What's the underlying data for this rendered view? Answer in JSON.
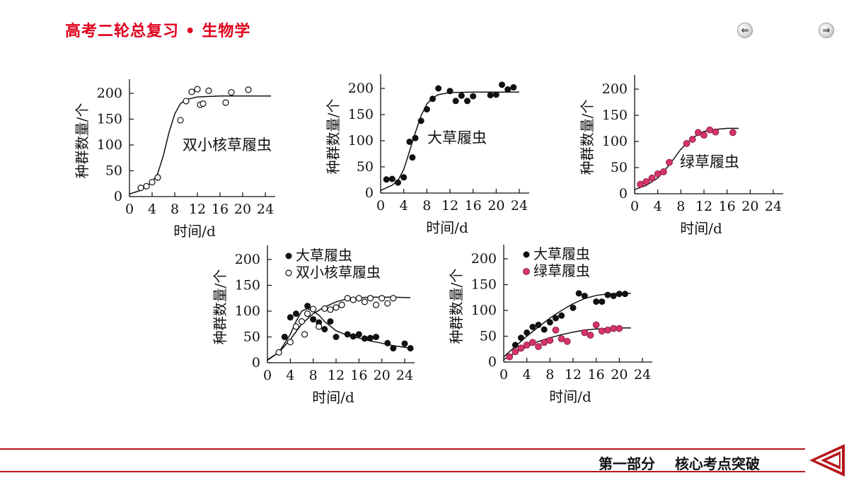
{
  "header": {
    "title": "高考二轮总复习 • 生物学"
  },
  "nav": {
    "prev_icon": "arrow-left-icon",
    "next_icon": "arrow-right-icon",
    "prev_glyph": "⇐",
    "next_glyph": "⇒"
  },
  "footer": {
    "section": "第一部分",
    "topic": "核心考点突破"
  },
  "colors": {
    "header_red": "#e0001b",
    "footer_red": "#b5171c",
    "pink_marker": "#d6336c"
  },
  "chart_data": [
    {
      "type": "scatter",
      "ylabel": "种群数量/个",
      "xlabel": "时间/d",
      "xlim": [
        0,
        24
      ],
      "ylim": [
        0,
        200
      ],
      "xticks": [
        0,
        4,
        8,
        12,
        16,
        20,
        24
      ],
      "yticks": [
        0,
        50,
        100,
        150,
        200
      ],
      "annotation": "双小核草履虫",
      "series": [
        {
          "marker": "open",
          "points": [
            [
              2,
              17
            ],
            [
              3,
              20
            ],
            [
              4,
              28
            ],
            [
              5,
              37
            ],
            [
              9,
              148
            ],
            [
              10,
              185
            ],
            [
              11,
              203
            ],
            [
              12,
              208
            ],
            [
              12.5,
              178
            ],
            [
              13,
              180
            ],
            [
              14,
              205
            ],
            [
              17,
              182
            ],
            [
              18,
              202
            ],
            [
              21,
              207
            ]
          ],
          "curve": [
            [
              0,
              5
            ],
            [
              2,
              12
            ],
            [
              4,
              28
            ],
            [
              5,
              45
            ],
            [
              6,
              80
            ],
            [
              7,
              125
            ],
            [
              8,
              160
            ],
            [
              9,
              180
            ],
            [
              10,
              188
            ],
            [
              12,
              193
            ],
            [
              16,
              195
            ],
            [
              20,
              195
            ],
            [
              25,
              195
            ]
          ]
        }
      ]
    },
    {
      "type": "scatter",
      "ylabel": "种群数量/个",
      "xlabel": "时间/d",
      "xlim": [
        0,
        24
      ],
      "ylim": [
        0,
        200
      ],
      "xticks": [
        0,
        4,
        8,
        12,
        16,
        20,
        24
      ],
      "yticks": [
        0,
        50,
        100,
        150,
        200
      ],
      "annotation": "大草履虫",
      "series": [
        {
          "marker": "filled",
          "points": [
            [
              1,
              26
            ],
            [
              2,
              27
            ],
            [
              3,
              20
            ],
            [
              4,
              30
            ],
            [
              5,
              98
            ],
            [
              5.5,
              68
            ],
            [
              6,
              105
            ],
            [
              7,
              138
            ],
            [
              8,
              160
            ],
            [
              9,
              180
            ],
            [
              10,
              200
            ],
            [
              12,
              195
            ],
            [
              13,
              176
            ],
            [
              14,
              186
            ],
            [
              15,
              176
            ],
            [
              16,
              185
            ],
            [
              19,
              187
            ],
            [
              20,
              188
            ],
            [
              21,
              207
            ],
            [
              22,
              198
            ],
            [
              23,
              202
            ]
          ],
          "curve": [
            [
              0,
              5
            ],
            [
              2,
              15
            ],
            [
              3,
              24
            ],
            [
              4,
              45
            ],
            [
              5,
              80
            ],
            [
              6,
              115
            ],
            [
              7,
              148
            ],
            [
              8,
              170
            ],
            [
              9,
              182
            ],
            [
              10,
              188
            ],
            [
              12,
              192
            ],
            [
              16,
              193
            ],
            [
              20,
              193
            ],
            [
              24,
              193
            ]
          ]
        }
      ]
    },
    {
      "type": "scatter",
      "ylabel": "种群数量/个",
      "xlabel": "时间/d",
      "xlim": [
        0,
        24
      ],
      "ylim": [
        0,
        200
      ],
      "xticks": [
        0,
        4,
        8,
        12,
        16,
        20,
        24
      ],
      "yticks": [
        0,
        50,
        100,
        150,
        200
      ],
      "annotation": "绿草履虫",
      "series": [
        {
          "marker": "pink",
          "points": [
            [
              1,
              18
            ],
            [
              2,
              23
            ],
            [
              3,
              30
            ],
            [
              4,
              38
            ],
            [
              5,
              42
            ],
            [
              6,
              60
            ],
            [
              9,
              96
            ],
            [
              10,
              104
            ],
            [
              11,
              117
            ],
            [
              12,
              112
            ],
            [
              13,
              122
            ],
            [
              14,
              118
            ],
            [
              17,
              117
            ]
          ],
          "curve": [
            [
              0,
              8
            ],
            [
              2,
              16
            ],
            [
              4,
              30
            ],
            [
              6,
              55
            ],
            [
              8,
              85
            ],
            [
              10,
              107
            ],
            [
              12,
              119
            ],
            [
              14,
              123
            ],
            [
              16,
              125
            ],
            [
              18,
              125
            ]
          ]
        }
      ]
    },
    {
      "type": "scatter",
      "ylabel": "种群数量/个",
      "xlabel": "时间/d",
      "xlim": [
        0,
        24
      ],
      "ylim": [
        0,
        200
      ],
      "xticks": [
        0,
        4,
        8,
        12,
        16,
        20,
        24
      ],
      "yticks": [
        0,
        50,
        100,
        150,
        200
      ],
      "legend": [
        "大草履虫",
        "双小核草履虫"
      ],
      "series": [
        {
          "name": "大草履虫",
          "marker": "filled",
          "points": [
            [
              3,
              50
            ],
            [
              4,
              88
            ],
            [
              5,
              95
            ],
            [
              7,
              110
            ],
            [
              8,
              84
            ],
            [
              9,
              78
            ],
            [
              10,
              65
            ],
            [
              11,
              80
            ],
            [
              12,
              50
            ],
            [
              14,
              55
            ],
            [
              15,
              51
            ],
            [
              16,
              55
            ],
            [
              17,
              47
            ],
            [
              18,
              48
            ],
            [
              19,
              50
            ],
            [
              21,
              38
            ],
            [
              22,
              28
            ],
            [
              24,
              37
            ],
            [
              25,
              28
            ]
          ],
          "curve": [
            [
              0,
              6
            ],
            [
              2,
              20
            ],
            [
              4,
              55
            ],
            [
              5,
              80
            ],
            [
              6,
              100
            ],
            [
              7,
              105
            ],
            [
              8,
              100
            ],
            [
              9,
              92
            ],
            [
              10,
              80
            ],
            [
              12,
              62
            ],
            [
              14,
              53
            ],
            [
              16,
              48
            ],
            [
              18,
              42
            ],
            [
              20,
              38
            ],
            [
              22,
              33
            ],
            [
              24,
              30
            ],
            [
              25,
              28
            ]
          ]
        },
        {
          "name": "双小核草履虫",
          "marker": "open",
          "points": [
            [
              2,
              20
            ],
            [
              4,
              40
            ],
            [
              5,
              70
            ],
            [
              6,
              80
            ],
            [
              6.5,
              55
            ],
            [
              7,
              95
            ],
            [
              8,
              104
            ],
            [
              9,
              70
            ],
            [
              10,
              105
            ],
            [
              11,
              103
            ],
            [
              12,
              107
            ],
            [
              13,
              112
            ],
            [
              14,
              125
            ],
            [
              15,
              122
            ],
            [
              16,
              125
            ],
            [
              17,
              118
            ],
            [
              18,
              125
            ],
            [
              19,
              112
            ],
            [
              20,
              125
            ],
            [
              21,
              115
            ],
            [
              22,
              125
            ]
          ],
          "curve": [
            [
              0,
              5
            ],
            [
              2,
              20
            ],
            [
              4,
              45
            ],
            [
              6,
              75
            ],
            [
              8,
              95
            ],
            [
              10,
              108
            ],
            [
              12,
              118
            ],
            [
              14,
              124
            ],
            [
              16,
              126
            ],
            [
              18,
              127
            ],
            [
              20,
              127
            ],
            [
              22,
              127
            ],
            [
              25,
              126
            ]
          ]
        }
      ]
    },
    {
      "type": "scatter",
      "ylabel": "种群数量/个",
      "xlabel": "时间/d",
      "xlim": [
        0,
        24
      ],
      "ylim": [
        0,
        200
      ],
      "xticks": [
        0,
        4,
        8,
        12,
        16,
        20,
        24
      ],
      "yticks": [
        0,
        50,
        100,
        150,
        200
      ],
      "legend": [
        "大草履虫",
        "绿草履虫"
      ],
      "series": [
        {
          "name": "大草履虫",
          "marker": "filled",
          "points": [
            [
              2,
              33
            ],
            [
              3,
              47
            ],
            [
              4,
              57
            ],
            [
              5,
              68
            ],
            [
              6,
              72
            ],
            [
              7,
              63
            ],
            [
              8,
              77
            ],
            [
              9,
              85
            ],
            [
              10,
              90
            ],
            [
              12,
              105
            ],
            [
              13,
              133
            ],
            [
              14,
              128
            ],
            [
              16,
              117
            ],
            [
              17,
              117
            ],
            [
              18,
              130
            ],
            [
              19,
              128
            ],
            [
              20,
              132
            ],
            [
              21,
              132
            ]
          ],
          "curve": [
            [
              0,
              10
            ],
            [
              2,
              30
            ],
            [
              4,
              50
            ],
            [
              6,
              68
            ],
            [
              8,
              85
            ],
            [
              10,
              100
            ],
            [
              12,
              113
            ],
            [
              14,
              123
            ],
            [
              16,
              129
            ],
            [
              18,
              132
            ],
            [
              20,
              133
            ],
            [
              22,
              133
            ]
          ]
        },
        {
          "name": "绿草履虫",
          "marker": "pink",
          "points": [
            [
              1,
              10
            ],
            [
              2,
              20
            ],
            [
              3,
              27
            ],
            [
              4,
              33
            ],
            [
              5,
              38
            ],
            [
              6,
              30
            ],
            [
              7,
              38
            ],
            [
              8,
              42
            ],
            [
              9,
              62
            ],
            [
              10,
              45
            ],
            [
              11,
              40
            ],
            [
              14,
              57
            ],
            [
              15,
              52
            ],
            [
              16,
              72
            ],
            [
              17,
              60
            ],
            [
              18,
              62
            ],
            [
              19,
              65
            ],
            [
              20,
              65
            ]
          ],
          "curve": [
            [
              0,
              5
            ],
            [
              2,
              18
            ],
            [
              4,
              30
            ],
            [
              6,
              40
            ],
            [
              8,
              47
            ],
            [
              10,
              53
            ],
            [
              12,
              58
            ],
            [
              14,
              62
            ],
            [
              16,
              64
            ],
            [
              18,
              65
            ],
            [
              20,
              66
            ],
            [
              22,
              66
            ]
          ]
        }
      ]
    }
  ]
}
